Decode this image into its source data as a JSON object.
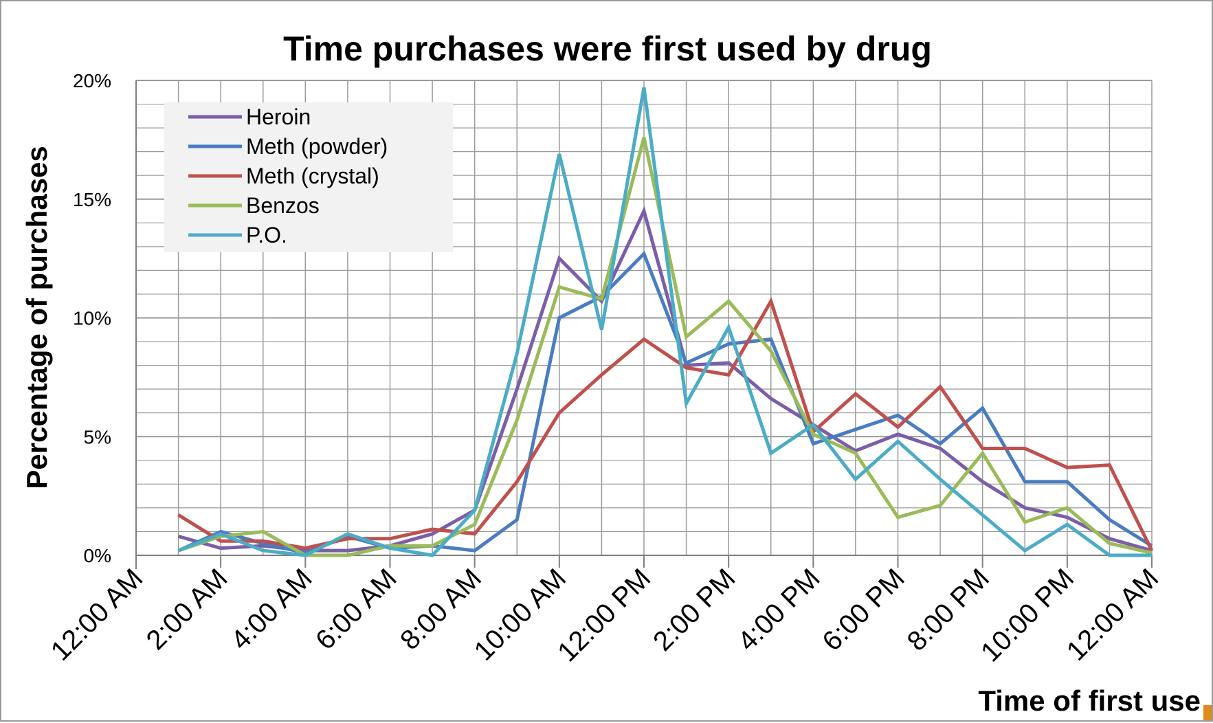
{
  "chart_data": {
    "type": "line",
    "title": "Time purchases were first used by drug",
    "xlabel": "Time of first use",
    "ylabel": "Percentage of purchases",
    "ylim": [
      0,
      20
    ],
    "y_ticks": [
      "0%",
      "5%",
      "10%",
      "15%",
      "20%"
    ],
    "x_ticks": [
      "12:00 AM",
      "2:00 AM",
      "4:00 AM",
      "6:00 AM",
      "8:00 AM",
      "10:00 AM",
      "12:00 PM",
      "2:00 PM",
      "4:00 PM",
      "6:00 PM",
      "8:00 PM",
      "10:00 PM",
      "12:00 AM"
    ],
    "x": [
      1,
      2,
      3,
      4,
      5,
      6,
      7,
      8,
      9,
      10,
      11,
      12,
      13,
      14,
      15,
      16,
      17,
      18,
      19,
      20,
      21,
      22,
      23,
      24
    ],
    "grid": true,
    "legend_position": "top-left",
    "series": [
      {
        "name": "Heroin",
        "color": "#7b5ea7",
        "values": [
          0.8,
          0.3,
          0.4,
          0.2,
          0.2,
          0.4,
          0.9,
          1.9,
          7.0,
          12.5,
          10.7,
          14.5,
          8.0,
          8.1,
          6.6,
          5.5,
          4.4,
          5.1,
          4.5,
          3.1,
          2.0,
          1.6,
          0.7,
          0.2
        ]
      },
      {
        "name": "Meth (powder)",
        "color": "#4a7cc1",
        "values": [
          0.2,
          1.0,
          0.5,
          0.1,
          0.8,
          0.3,
          0.4,
          0.2,
          1.5,
          10.0,
          10.9,
          12.7,
          8.1,
          8.9,
          9.1,
          4.7,
          5.3,
          5.9,
          4.7,
          6.2,
          3.1,
          3.1,
          1.5,
          0.4
        ]
      },
      {
        "name": "Meth (crystal)",
        "color": "#c0504d",
        "values": [
          1.7,
          0.6,
          0.6,
          0.3,
          0.7,
          0.7,
          1.1,
          0.9,
          3.1,
          6.0,
          7.6,
          9.1,
          7.9,
          7.6,
          10.7,
          5.2,
          6.8,
          5.4,
          7.1,
          4.5,
          4.5,
          3.7,
          3.8,
          0.2
        ]
      },
      {
        "name": "Benzos",
        "color": "#9bbb59",
        "values": [
          0.2,
          0.8,
          1.0,
          0.0,
          0.0,
          0.4,
          0.4,
          1.3,
          5.7,
          11.3,
          10.8,
          17.6,
          9.2,
          10.7,
          8.6,
          5.1,
          4.3,
          1.6,
          2.1,
          4.3,
          1.4,
          2.0,
          0.5,
          0.1
        ]
      },
      {
        "name": "P.O.",
        "color": "#4bacc6",
        "values": [
          0.2,
          0.9,
          0.2,
          0.0,
          0.9,
          0.3,
          0.0,
          1.9,
          8.5,
          16.9,
          9.5,
          19.7,
          6.4,
          9.6,
          4.3,
          5.5,
          3.2,
          4.8,
          3.2,
          1.7,
          0.2,
          1.3,
          0.0,
          0.0
        ]
      }
    ]
  }
}
